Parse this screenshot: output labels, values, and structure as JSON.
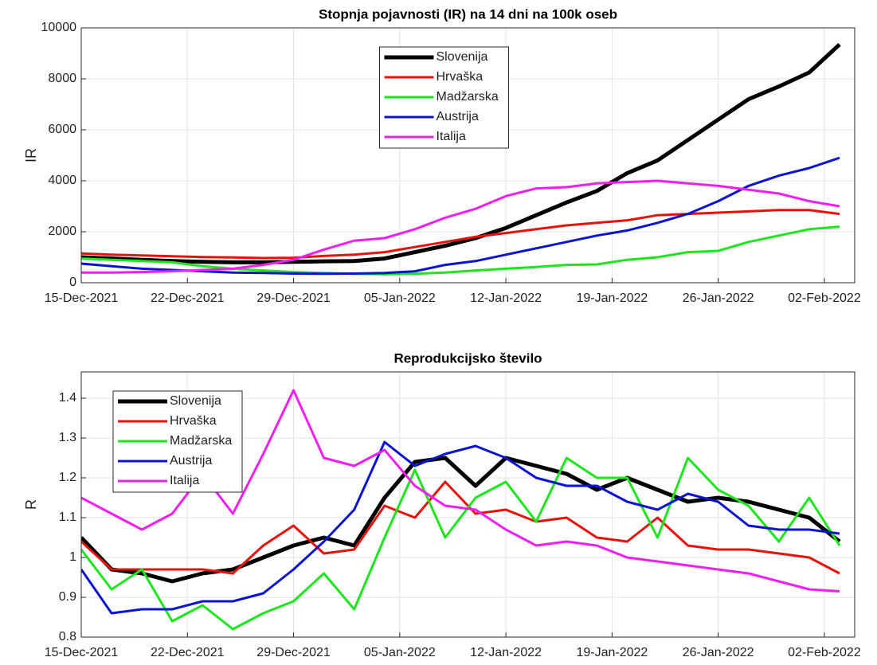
{
  "chart_data": [
    {
      "type": "line",
      "title": "Stopnja pojavnosti (IR) na 14 dni na 100k oseb",
      "ylabel": "IR",
      "x": [
        "2021-12-15",
        "2021-12-17",
        "2021-12-19",
        "2021-12-21",
        "2021-12-23",
        "2021-12-25",
        "2021-12-27",
        "2021-12-29",
        "2021-12-31",
        "2022-01-02",
        "2022-01-04",
        "2022-01-06",
        "2022-01-08",
        "2022-01-10",
        "2022-01-12",
        "2022-01-14",
        "2022-01-16",
        "2022-01-18",
        "2022-01-20",
        "2022-01-22",
        "2022-01-24",
        "2022-01-26",
        "2022-01-28",
        "2022-01-30",
        "2022-02-01",
        "2022-02-03"
      ],
      "xlim": [
        "2021-12-15",
        "2022-02-04"
      ],
      "xticks": [
        {
          "value": "2021-12-15",
          "label": "15-Dec-2021"
        },
        {
          "value": "2021-12-22",
          "label": "22-Dec-2021"
        },
        {
          "value": "2021-12-29",
          "label": "29-Dec-2021"
        },
        {
          "value": "2022-01-05",
          "label": "05-Jan-2022"
        },
        {
          "value": "2022-01-12",
          "label": "12-Jan-2022"
        },
        {
          "value": "2022-01-19",
          "label": "19-Jan-2022"
        },
        {
          "value": "2022-01-26",
          "label": "26-Jan-2022"
        },
        {
          "value": "2022-02-02",
          "label": "02-Feb-2022"
        }
      ],
      "ylim": [
        0,
        10000
      ],
      "yticks": [
        0,
        2000,
        4000,
        6000,
        8000,
        10000
      ],
      "grid": true,
      "legend": "north",
      "series": [
        {
          "name": "Slovenija",
          "color": "#000000",
          "line_width": 5,
          "values": [
            1000,
            950,
            900,
            850,
            820,
            800,
            800,
            820,
            840,
            850,
            950,
            1200,
            1450,
            1750,
            2150,
            2650,
            3150,
            3600,
            4300,
            4800,
            5600,
            6400,
            7200,
            7700,
            8250,
            9350
          ]
        },
        {
          "name": "Hrvaška",
          "color": "#e8120c",
          "line_width": 3,
          "values": [
            1150,
            1100,
            1070,
            1040,
            1010,
            990,
            970,
            980,
            1050,
            1100,
            1200,
            1400,
            1600,
            1800,
            1950,
            2100,
            2250,
            2350,
            2450,
            2650,
            2700,
            2750,
            2800,
            2850,
            2850,
            2700
          ]
        },
        {
          "name": "Madžarska",
          "color": "#1ee61e",
          "line_width": 3,
          "values": [
            950,
            900,
            850,
            800,
            650,
            550,
            480,
            420,
            380,
            350,
            330,
            350,
            400,
            480,
            550,
            620,
            700,
            720,
            900,
            1000,
            1200,
            1250,
            1600,
            1850,
            2100,
            2200
          ]
        },
        {
          "name": "Austrija",
          "color": "#0a14d2",
          "line_width": 3,
          "values": [
            750,
            650,
            550,
            500,
            450,
            400,
            380,
            360,
            350,
            360,
            380,
            450,
            700,
            850,
            1100,
            1350,
            1600,
            1850,
            2050,
            2350,
            2700,
            3200,
            3800,
            4200,
            4500,
            4900
          ]
        },
        {
          "name": "Italija",
          "color": "#f01ef0",
          "line_width": 3,
          "values": [
            400,
            400,
            420,
            450,
            500,
            550,
            700,
            900,
            1300,
            1650,
            1750,
            2100,
            2550,
            2900,
            3400,
            3700,
            3750,
            3900,
            3950,
            4000,
            3900,
            3800,
            3650,
            3500,
            3200,
            3000
          ]
        }
      ]
    },
    {
      "type": "line",
      "title": "Reprodukcijsko število",
      "ylabel": "R",
      "x": [
        "2021-12-15",
        "2021-12-17",
        "2021-12-19",
        "2021-12-21",
        "2021-12-23",
        "2021-12-25",
        "2021-12-27",
        "2021-12-29",
        "2021-12-31",
        "2022-01-02",
        "2022-01-04",
        "2022-01-06",
        "2022-01-08",
        "2022-01-10",
        "2022-01-12",
        "2022-01-14",
        "2022-01-16",
        "2022-01-18",
        "2022-01-20",
        "2022-01-22",
        "2022-01-24",
        "2022-01-26",
        "2022-01-28",
        "2022-01-30",
        "2022-02-01",
        "2022-02-03"
      ],
      "xlim": [
        "2021-12-15",
        "2022-02-04"
      ],
      "xticks": [
        {
          "value": "2021-12-15",
          "label": "15-Dec-2021"
        },
        {
          "value": "2021-12-22",
          "label": "22-Dec-2021"
        },
        {
          "value": "2021-12-29",
          "label": "29-Dec-2021"
        },
        {
          "value": "2022-01-05",
          "label": "05-Jan-2022"
        },
        {
          "value": "2022-01-12",
          "label": "12-Jan-2022"
        },
        {
          "value": "2022-01-19",
          "label": "19-Jan-2022"
        },
        {
          "value": "2022-01-26",
          "label": "26-Jan-2022"
        },
        {
          "value": "2022-02-02",
          "label": "02-Feb-2022"
        }
      ],
      "ylim": [
        0.8,
        1.466
      ],
      "yticks": [
        0.8,
        0.9,
        1,
        1.1,
        1.2,
        1.3,
        1.4
      ],
      "grid": true,
      "legend": "northwest",
      "series": [
        {
          "name": "Slovenija",
          "color": "#000000",
          "line_width": 5,
          "values": [
            1.05,
            0.97,
            0.96,
            0.94,
            0.96,
            0.97,
            1.0,
            1.03,
            1.05,
            1.03,
            1.15,
            1.24,
            1.25,
            1.18,
            1.25,
            1.23,
            1.21,
            1.17,
            1.2,
            1.17,
            1.14,
            1.15,
            1.14,
            1.12,
            1.1,
            1.04
          ]
        },
        {
          "name": "Hrvaška",
          "color": "#e8120c",
          "line_width": 3,
          "values": [
            1.04,
            0.97,
            0.97,
            0.97,
            0.97,
            0.96,
            1.03,
            1.08,
            1.01,
            1.02,
            1.13,
            1.1,
            1.19,
            1.11,
            1.12,
            1.09,
            1.1,
            1.05,
            1.04,
            1.1,
            1.03,
            1.02,
            1.02,
            1.01,
            1.0,
            0.96
          ]
        },
        {
          "name": "Madžarska",
          "color": "#1ee61e",
          "line_width": 3,
          "values": [
            1.02,
            0.92,
            0.97,
            0.84,
            0.88,
            0.82,
            0.86,
            0.89,
            0.96,
            0.87,
            1.05,
            1.22,
            1.05,
            1.15,
            1.19,
            1.09,
            1.25,
            1.2,
            1.2,
            1.05,
            1.25,
            1.17,
            1.13,
            1.04,
            1.15,
            1.03
          ]
        },
        {
          "name": "Austrija",
          "color": "#0a14d2",
          "line_width": 3,
          "values": [
            0.97,
            0.86,
            0.87,
            0.87,
            0.89,
            0.89,
            0.91,
            0.97,
            1.04,
            1.12,
            1.29,
            1.23,
            1.26,
            1.28,
            1.25,
            1.2,
            1.18,
            1.18,
            1.14,
            1.12,
            1.16,
            1.14,
            1.08,
            1.07,
            1.07,
            1.06
          ]
        },
        {
          "name": "Italija",
          "color": "#f01ef0",
          "line_width": 3,
          "values": [
            1.15,
            1.11,
            1.07,
            1.11,
            1.21,
            1.11,
            1.26,
            1.42,
            1.25,
            1.23,
            1.27,
            1.18,
            1.13,
            1.12,
            1.07,
            1.03,
            1.04,
            1.03,
            1.0,
            0.99,
            0.98,
            0.97,
            0.96,
            0.94,
            0.92,
            0.915
          ]
        }
      ]
    }
  ]
}
